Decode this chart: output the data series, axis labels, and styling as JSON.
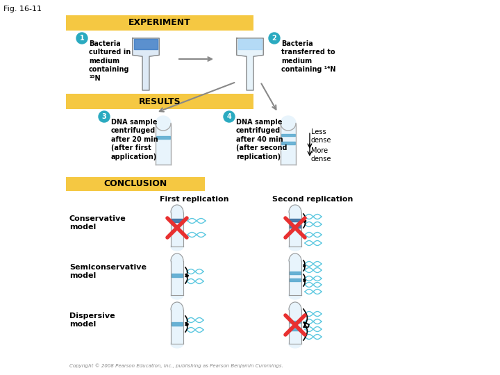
{
  "fig_label": "Fig. 16-11",
  "bg_color": "#ffffff",
  "header_bg": "#f5c842",
  "header_text_color": "#000000",
  "experiment_label": "EXPERIMENT",
  "results_label": "RESULTS",
  "conclusion_label": "CONCLUSION",
  "step1_text": "Bacteria\ncultured in\nmedium\ncontaining\n¹⁵N",
  "step2_text": "Bacteria\ntransferred to\nmedium\ncontaining ¹⁴N",
  "step3_text": "DNA sample\ncentrifuged\nafter 20 min\n(after first\napplication)",
  "step4_text": "DNA sample\ncentrifuged\nafter 40 min\n(after second\nreplication)",
  "less_dense": "Less\ndense",
  "more_dense": "More\ndense",
  "first_replication": "First replication",
  "second_replication": "Second replication",
  "conservative_model": "Conservative\nmodel",
  "semiconservative_model": "Semiconservative\nmodel",
  "dispersive_model": "Dispersive\nmodel",
  "copyright": "Copyright © 2008 Pearson Education, Inc., publishing as Pearson Benjamin Cummings.",
  "flask1_color": "#3a7ac4",
  "flask2_color": "#a8d4f5",
  "tube_color": "#d0e8f5",
  "band_heavy": "#3a6fa0",
  "band_mixed": "#5aaad0",
  "band_light": "#a8d4f5",
  "dna_color": "#5bc8e0",
  "red_x_color": "#e83030",
  "circle1_color": "#2aaac0",
  "circle2_color": "#2aaac0",
  "circle3_color": "#2aaac0",
  "circle4_color": "#2aaac0"
}
